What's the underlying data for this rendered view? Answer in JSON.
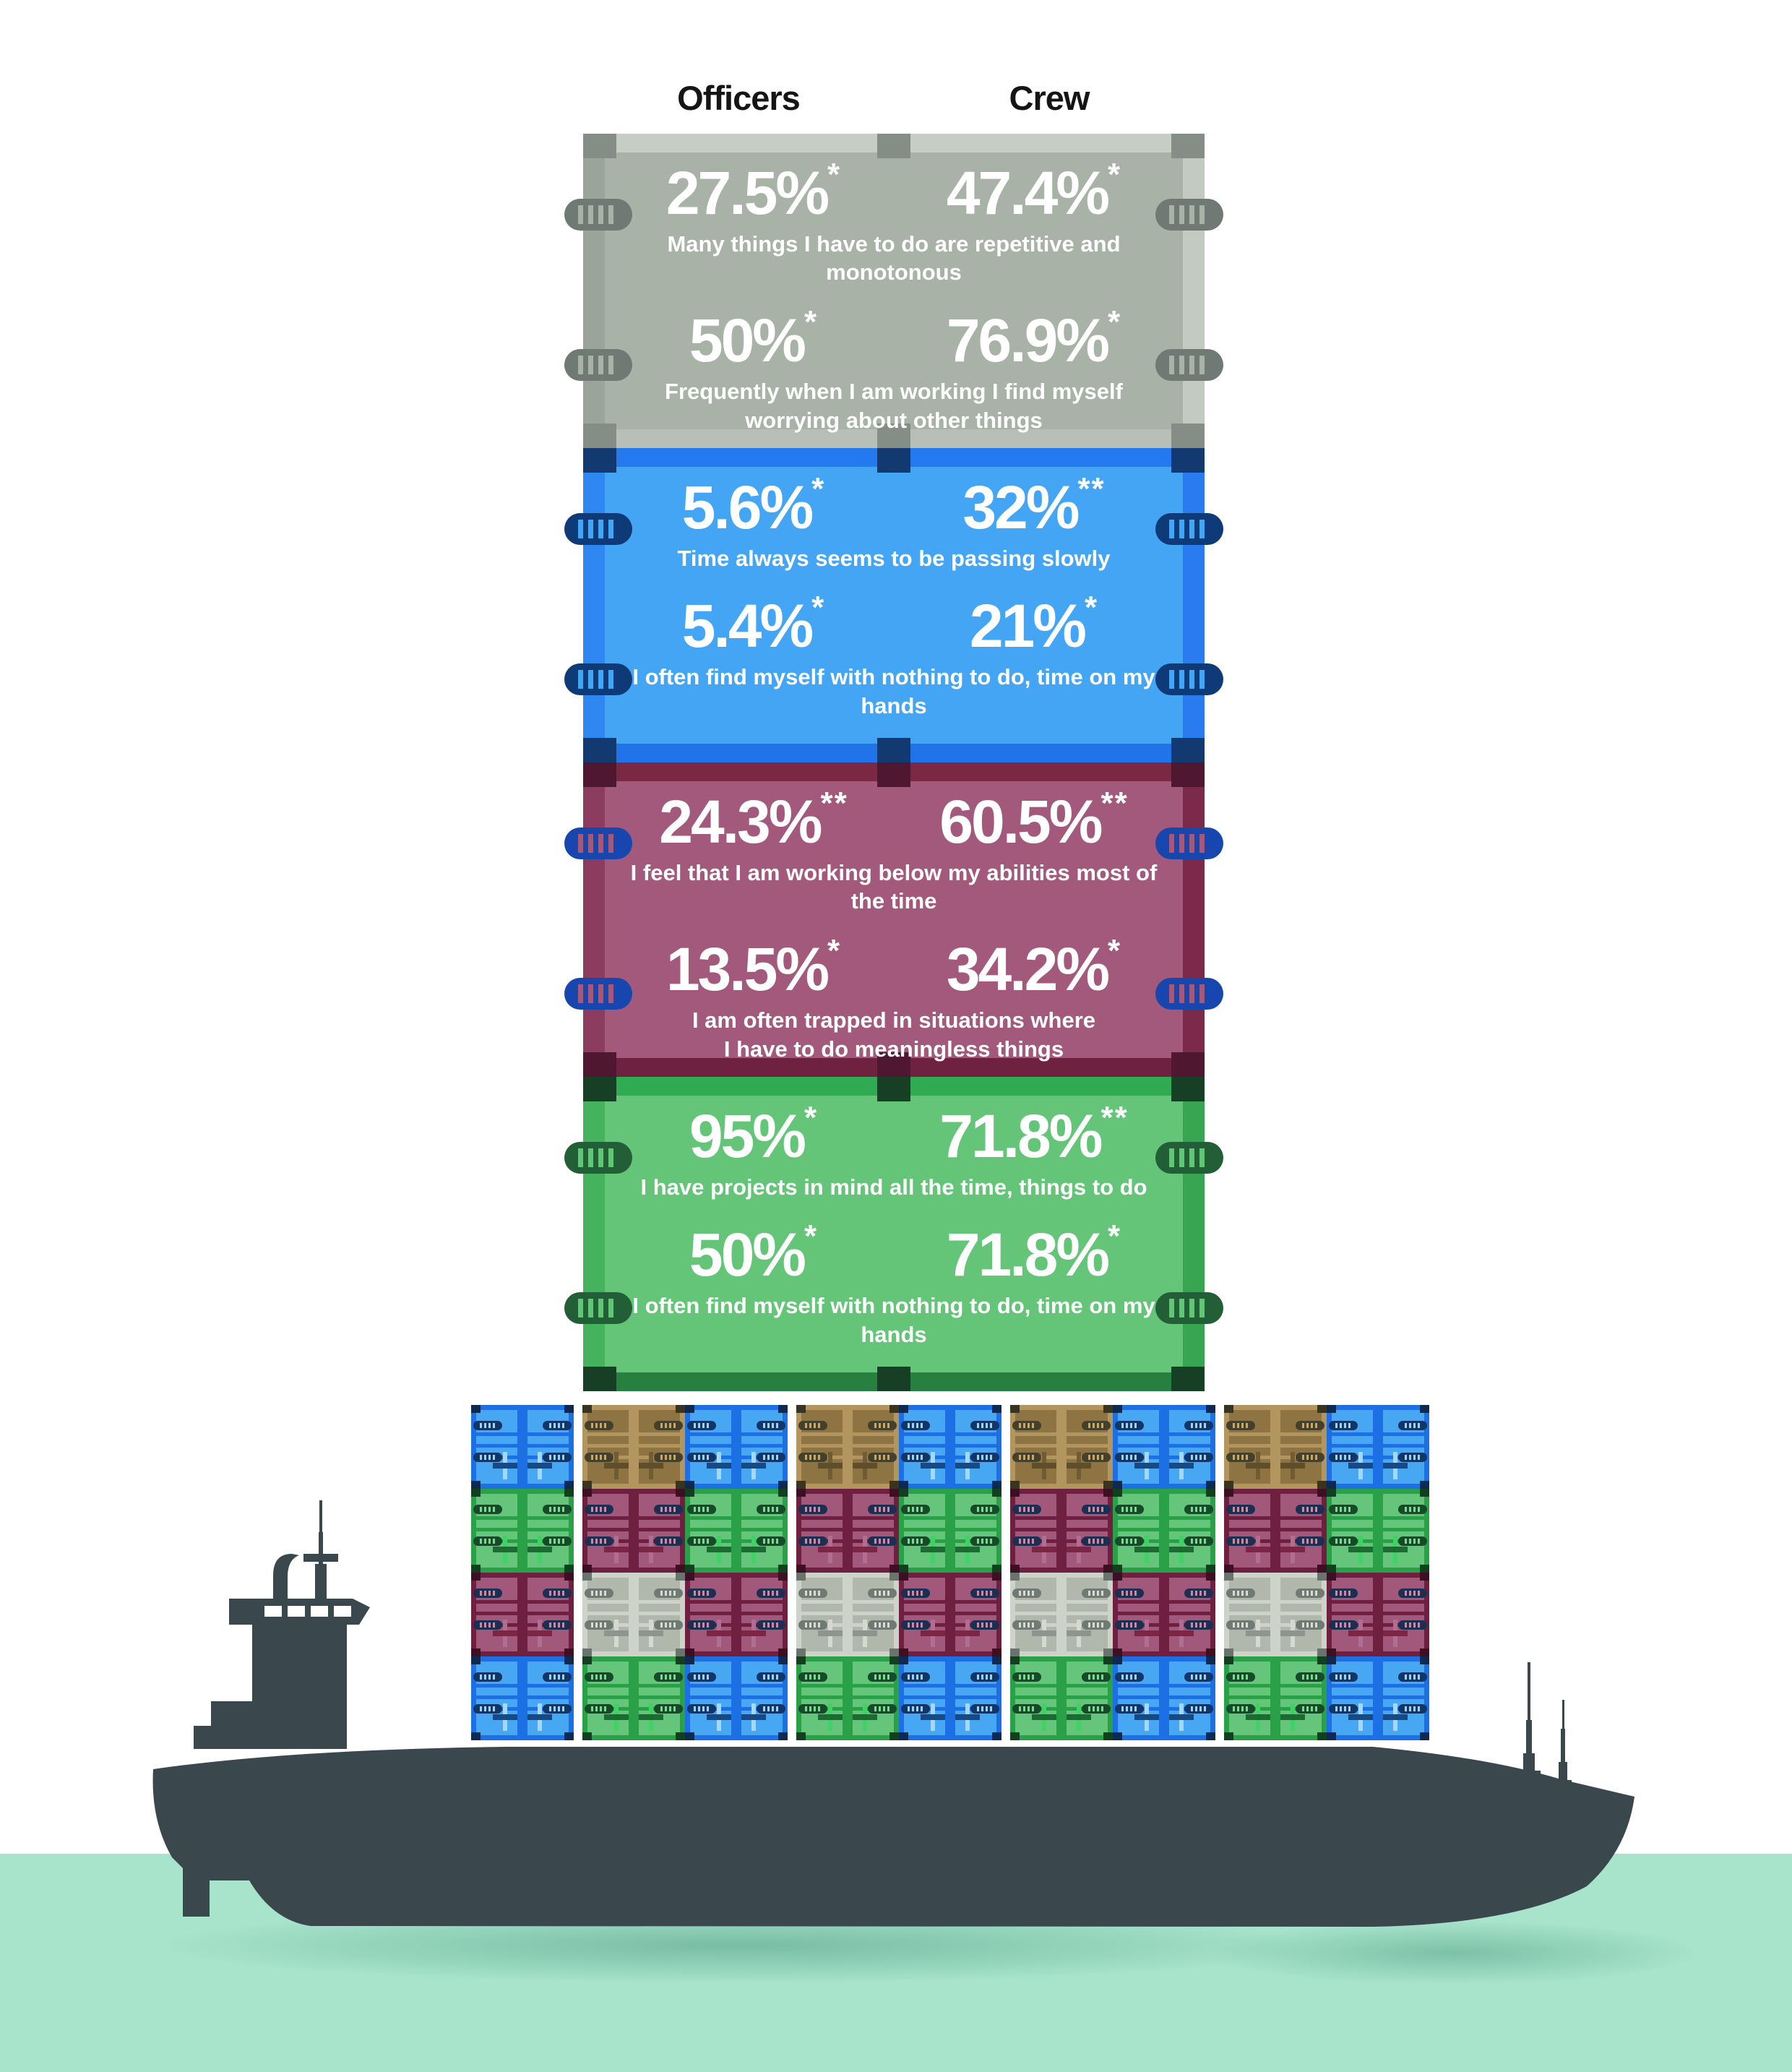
{
  "header": {
    "officers": "Officers",
    "crew": "Crew"
  },
  "sections": [
    {
      "name": "repetitive-monotonous",
      "color_name": "gray",
      "stats": [
        {
          "officers": "27.5%",
          "officers_note": "*",
          "crew": "47.4%",
          "crew_note": "*",
          "caption_1": "Many things I have to do are repetitive and monotonous",
          "caption_2": ""
        },
        {
          "officers": "50%",
          "officers_note": "*",
          "crew": "76.9%",
          "crew_note": "*",
          "caption_1": "Frequently when I am working I find myself",
          "caption_2": "worrying about other things"
        }
      ]
    },
    {
      "name": "time-passing",
      "color_name": "blue",
      "stats": [
        {
          "officers": "5.6%",
          "officers_note": "*",
          "crew": "32%",
          "crew_note": "**",
          "caption_1": "Time always seems to be passing slowly",
          "caption_2": ""
        },
        {
          "officers": "5.4%",
          "officers_note": "*",
          "crew": "21%",
          "crew_note": "*",
          "caption_1": "I often find myself with nothing to do, time on my hands",
          "caption_2": ""
        }
      ]
    },
    {
      "name": "below-abilities",
      "color_name": "red",
      "stats": [
        {
          "officers": "24.3%",
          "officers_note": "**",
          "crew": "60.5%",
          "crew_note": "**",
          "caption_1": "I feel that I am working below my abilities most of the time",
          "caption_2": ""
        },
        {
          "officers": "13.5%",
          "officers_note": "*",
          "crew": "34.2%",
          "crew_note": "*",
          "caption_1": "I am often trapped in situations where",
          "caption_2": "I have to do meaningless things"
        }
      ]
    },
    {
      "name": "projects-in-mind",
      "color_name": "green",
      "stats": [
        {
          "officers": "95%",
          "officers_note": "*",
          "crew": "71.8%",
          "crew_note": "**",
          "caption_1": "I have projects in mind all the time, things to do",
          "caption_2": ""
        },
        {
          "officers": "50%",
          "officers_note": "*",
          "crew": "71.8%",
          "crew_note": "*",
          "caption_1": "I often find myself with nothing to do, time on my hands",
          "caption_2": ""
        }
      ]
    }
  ],
  "cargo_grid": {
    "rows": [
      [
        "blue",
        "brown",
        "blue",
        "brown",
        "blue",
        "brown",
        "blue",
        "brown",
        "blue"
      ],
      [
        "green",
        "red",
        "green",
        "red",
        "green",
        "red",
        "green",
        "red",
        "green"
      ],
      [
        "red",
        "gray",
        "red",
        "gray",
        "red",
        "gray",
        "red",
        "gray",
        "red"
      ],
      [
        "blue",
        "green",
        "blue",
        "green",
        "blue",
        "green",
        "blue",
        "green",
        "blue"
      ]
    ],
    "group_gap_after_columns": [
      0,
      2,
      4,
      6
    ]
  },
  "colors": {
    "gray_container": "#a9b2a7",
    "blue_container": "#43a5f4",
    "red_container": "#a2597b",
    "green_container": "#64c478",
    "brown_container": "#8d7442",
    "water": "#a8e3cb",
    "ship": "#3a484e",
    "text_on_containers": "#ffffff",
    "header_text": "#151515"
  },
  "chart_data": {
    "type": "table",
    "title": "Officers vs Crew — agreement with statements (shipping-container infographic)",
    "categories": [
      "Many things I have to do are repetitive and monotonous",
      "Frequently when I am working I find myself worrying about other things",
      "Time always seems to be passing slowly",
      "I often find myself with nothing to do, time on my hands",
      "I feel that I am working below my abilities most of the time",
      "I am often trapped in situations where I have to do meaningless things",
      "I have projects in mind all the time, things to do",
      "I often find myself with nothing to do, time on my hands"
    ],
    "series": [
      {
        "name": "Officers",
        "values": [
          27.5,
          50,
          5.6,
          5.4,
          24.3,
          13.5,
          95,
          50
        ],
        "notes": [
          "*",
          "*",
          "*",
          "*",
          "**",
          "*",
          "*",
          "*"
        ]
      },
      {
        "name": "Crew",
        "values": [
          47.4,
          76.9,
          32,
          21,
          60.5,
          34.2,
          71.8,
          71.8
        ],
        "notes": [
          "*",
          "*",
          "**",
          "*",
          "**",
          "*",
          "**",
          "*"
        ]
      }
    ],
    "group_colors": [
      "gray",
      "gray",
      "blue",
      "blue",
      "red",
      "red",
      "green",
      "green"
    ],
    "unit": "%"
  }
}
